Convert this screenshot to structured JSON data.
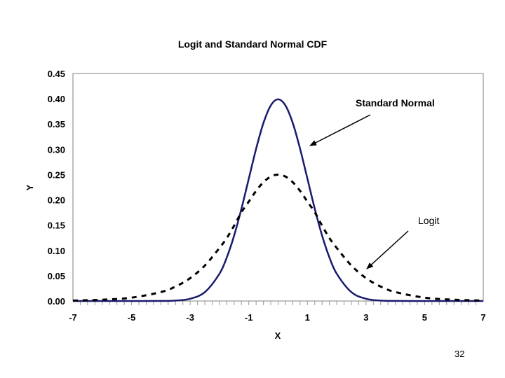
{
  "page_number": "32",
  "chart_data": {
    "type": "line",
    "title": "Logit and Standard Normal CDF",
    "xlabel": "X",
    "ylabel": "Y",
    "xlim": [
      -7,
      7
    ],
    "ylim": [
      0,
      0.45
    ],
    "x_ticks": [
      -7,
      -5,
      -3,
      -1,
      1,
      3,
      5,
      7
    ],
    "x_tick_labels": [
      "-7",
      "-5",
      "-3",
      "-1",
      "1",
      "3",
      "5",
      "7"
    ],
    "y_ticks": [
      0,
      0.05,
      0.1,
      0.15,
      0.2,
      0.25,
      0.3,
      0.35,
      0.4,
      0.45
    ],
    "y_tick_labels": [
      "0.00",
      "0.05",
      "0.10",
      "0.15",
      "0.20",
      "0.25",
      "0.30",
      "0.35",
      "0.40",
      "0.45"
    ],
    "grid": false,
    "legend": "none",
    "series": [
      {
        "name": "Standard Normal",
        "style": "solid",
        "color": "#1a1a6e",
        "x": [
          -7,
          -6,
          -5,
          -4,
          -3.5,
          -3,
          -2.5,
          -2,
          -1.75,
          -1.5,
          -1.25,
          -1,
          -0.75,
          -0.5,
          -0.25,
          0,
          0.25,
          0.5,
          0.75,
          1,
          1.25,
          1.5,
          1.75,
          2,
          2.5,
          3,
          3.5,
          4,
          5,
          6,
          7
        ],
        "values": [
          0.0,
          0.0,
          0.0,
          0.0001,
          0.0009,
          0.0044,
          0.0175,
          0.054,
          0.0863,
          0.1295,
          0.1826,
          0.242,
          0.3011,
          0.3521,
          0.3867,
          0.3989,
          0.3867,
          0.3521,
          0.3011,
          0.242,
          0.1826,
          0.1295,
          0.0863,
          0.054,
          0.0175,
          0.0044,
          0.0009,
          0.0001,
          0.0,
          0.0,
          0.0
        ]
      },
      {
        "name": "Logit",
        "style": "dashed",
        "color": "#000000",
        "x": [
          -7,
          -6,
          -5,
          -4,
          -3.5,
          -3,
          -2.5,
          -2,
          -1.75,
          -1.5,
          -1.25,
          -1,
          -0.75,
          -0.5,
          -0.25,
          0,
          0.25,
          0.5,
          0.75,
          1,
          1.25,
          1.5,
          1.75,
          2,
          2.5,
          3,
          3.5,
          4,
          5,
          6,
          7
        ],
        "values": [
          0.0009,
          0.0025,
          0.0066,
          0.0177,
          0.0285,
          0.0452,
          0.0701,
          0.105,
          0.1246,
          0.1491,
          0.1756,
          0.1966,
          0.2178,
          0.235,
          0.2461,
          0.25,
          0.2461,
          0.235,
          0.2178,
          0.1966,
          0.1756,
          0.1491,
          0.1246,
          0.105,
          0.0701,
          0.0452,
          0.0285,
          0.0177,
          0.0066,
          0.0025,
          0.0009
        ]
      }
    ],
    "annotations": [
      {
        "text": "Standard Normal",
        "points_to": [
          1.05,
          0.3
        ]
      },
      {
        "text": "Logit",
        "points_to": [
          3.0,
          0.062
        ]
      }
    ]
  }
}
